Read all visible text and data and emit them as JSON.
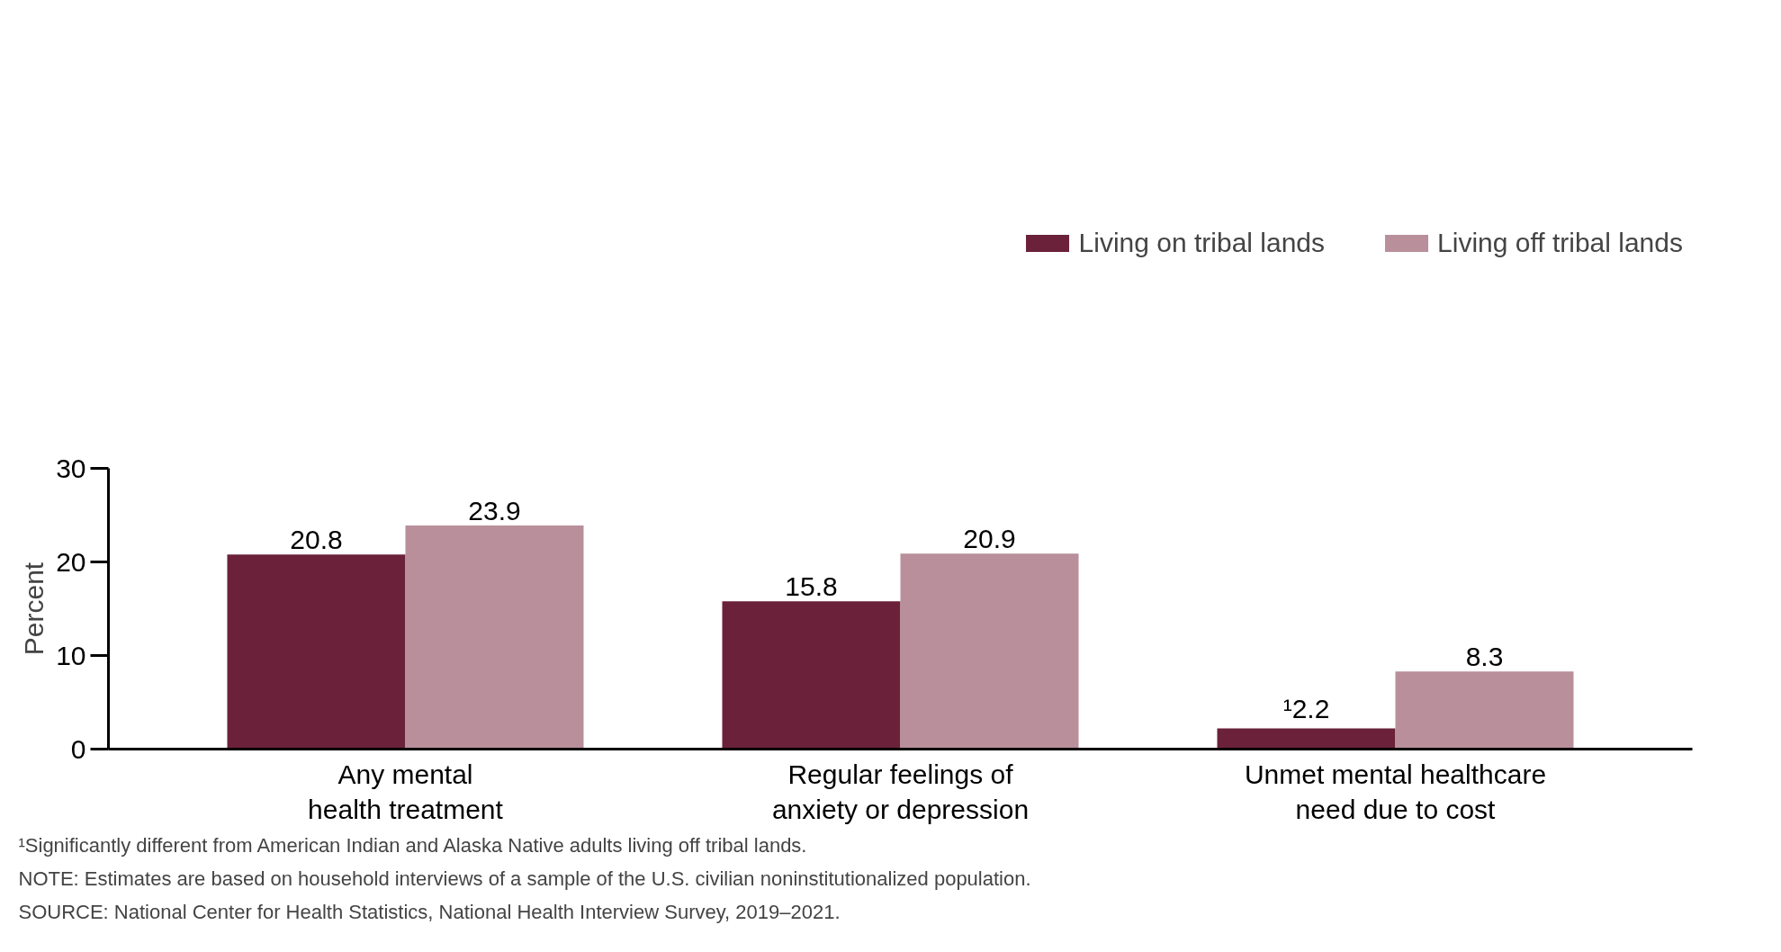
{
  "chart_data": {
    "type": "bar",
    "ylabel": "Percent",
    "categories": [
      "Any mental health treatment",
      "Regular feelings of anxiety or depression",
      "Unmet mental healthcare need due to cost"
    ],
    "series": [
      {
        "name": "Living on tribal lands",
        "color": "#6b2139",
        "values": [
          20.8,
          15.8,
          2.2
        ],
        "value_labels": [
          "20.8",
          "15.8",
          "¹2.2"
        ]
      },
      {
        "name": "Living off tribal lands",
        "color": "#b88f9b",
        "values": [
          23.9,
          20.9,
          8.3
        ],
        "value_labels": [
          "23.9",
          "20.9",
          "8.3"
        ]
      }
    ],
    "ylim": [
      0,
      30
    ],
    "yticks": [
      0,
      10,
      20,
      30
    ],
    "grid": false,
    "legend": "top right",
    "annotations": [
      "¹Significantly different from American Indian and Alaska Native adults living off tribal lands.",
      "NOTE: Estimates are based on household interviews of a sample of the U.S. civilian noninstitutionalized population.",
      "SOURCE: National Center for Health Statistics, National Health Interview Survey, 2019–2021."
    ]
  }
}
